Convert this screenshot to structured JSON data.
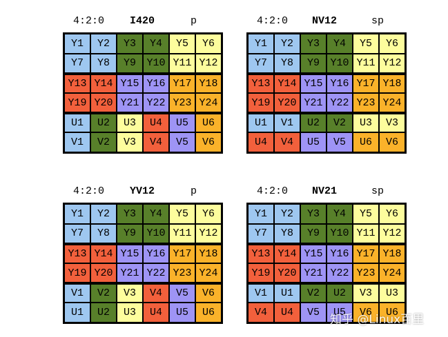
{
  "colors": {
    "blue": "#9ec7f0",
    "green": "#58802a",
    "yellow": "#fdfd9d",
    "red": "#f2603c",
    "purple": "#9e94f5",
    "orange": "#fab22a"
  },
  "panels": [
    {
      "ratio": "4:2:0",
      "name": "I420",
      "kind": "p",
      "rows": [
        [
          [
            "Y1",
            "blue"
          ],
          [
            "Y2",
            "blue"
          ],
          [
            "Y3",
            "green"
          ],
          [
            "Y4",
            "green"
          ],
          [
            "Y5",
            "yellow"
          ],
          [
            "Y6",
            "yellow"
          ]
        ],
        [
          [
            "Y7",
            "blue"
          ],
          [
            "Y8",
            "blue"
          ],
          [
            "Y9",
            "green"
          ],
          [
            "Y10",
            "green"
          ],
          [
            "Y11",
            "yellow"
          ],
          [
            "Y12",
            "yellow"
          ]
        ],
        [
          [
            "Y13",
            "red"
          ],
          [
            "Y14",
            "red"
          ],
          [
            "Y15",
            "purple"
          ],
          [
            "Y16",
            "purple"
          ],
          [
            "Y17",
            "orange"
          ],
          [
            "Y18",
            "orange"
          ]
        ],
        [
          [
            "Y19",
            "red"
          ],
          [
            "Y20",
            "red"
          ],
          [
            "Y21",
            "purple"
          ],
          [
            "Y22",
            "purple"
          ],
          [
            "Y23",
            "orange"
          ],
          [
            "Y24",
            "orange"
          ]
        ],
        [
          [
            "U1",
            "blue"
          ],
          [
            "U2",
            "green"
          ],
          [
            "U3",
            "yellow"
          ],
          [
            "U4",
            "red"
          ],
          [
            "U5",
            "purple"
          ],
          [
            "U6",
            "orange"
          ]
        ],
        [
          [
            "V1",
            "blue"
          ],
          [
            "V2",
            "green"
          ],
          [
            "V3",
            "yellow"
          ],
          [
            "V4",
            "red"
          ],
          [
            "V5",
            "purple"
          ],
          [
            "V6",
            "orange"
          ]
        ]
      ]
    },
    {
      "ratio": "4:2:0",
      "name": "NV12",
      "kind": "sp",
      "rows": [
        [
          [
            "Y1",
            "blue"
          ],
          [
            "Y2",
            "blue"
          ],
          [
            "Y3",
            "green"
          ],
          [
            "Y4",
            "green"
          ],
          [
            "Y5",
            "yellow"
          ],
          [
            "Y6",
            "yellow"
          ]
        ],
        [
          [
            "Y7",
            "blue"
          ],
          [
            "Y8",
            "blue"
          ],
          [
            "Y9",
            "green"
          ],
          [
            "Y10",
            "green"
          ],
          [
            "Y11",
            "yellow"
          ],
          [
            "Y12",
            "yellow"
          ]
        ],
        [
          [
            "Y13",
            "red"
          ],
          [
            "Y14",
            "red"
          ],
          [
            "Y15",
            "purple"
          ],
          [
            "Y16",
            "purple"
          ],
          [
            "Y17",
            "orange"
          ],
          [
            "Y18",
            "orange"
          ]
        ],
        [
          [
            "Y19",
            "red"
          ],
          [
            "Y20",
            "red"
          ],
          [
            "Y21",
            "purple"
          ],
          [
            "Y22",
            "purple"
          ],
          [
            "Y23",
            "orange"
          ],
          [
            "Y24",
            "orange"
          ]
        ],
        [
          [
            "U1",
            "blue"
          ],
          [
            "V1",
            "blue"
          ],
          [
            "U2",
            "green"
          ],
          [
            "V2",
            "green"
          ],
          [
            "U3",
            "yellow"
          ],
          [
            "V3",
            "yellow"
          ]
        ],
        [
          [
            "U4",
            "red"
          ],
          [
            "V4",
            "red"
          ],
          [
            "U5",
            "purple"
          ],
          [
            "V5",
            "purple"
          ],
          [
            "U6",
            "orange"
          ],
          [
            "V6",
            "orange"
          ]
        ]
      ]
    },
    {
      "ratio": "4:2:0",
      "name": "YV12",
      "kind": "p",
      "rows": [
        [
          [
            "Y1",
            "blue"
          ],
          [
            "Y2",
            "blue"
          ],
          [
            "Y3",
            "green"
          ],
          [
            "Y4",
            "green"
          ],
          [
            "Y5",
            "yellow"
          ],
          [
            "Y6",
            "yellow"
          ]
        ],
        [
          [
            "Y7",
            "blue"
          ],
          [
            "Y8",
            "blue"
          ],
          [
            "Y9",
            "green"
          ],
          [
            "Y10",
            "green"
          ],
          [
            "Y11",
            "yellow"
          ],
          [
            "Y12",
            "yellow"
          ]
        ],
        [
          [
            "Y13",
            "red"
          ],
          [
            "Y14",
            "red"
          ],
          [
            "Y15",
            "purple"
          ],
          [
            "Y16",
            "purple"
          ],
          [
            "Y17",
            "orange"
          ],
          [
            "Y18",
            "orange"
          ]
        ],
        [
          [
            "Y19",
            "red"
          ],
          [
            "Y20",
            "red"
          ],
          [
            "Y21",
            "purple"
          ],
          [
            "Y22",
            "purple"
          ],
          [
            "Y23",
            "orange"
          ],
          [
            "Y24",
            "orange"
          ]
        ],
        [
          [
            "V1",
            "blue"
          ],
          [
            "V2",
            "green"
          ],
          [
            "V3",
            "yellow"
          ],
          [
            "V4",
            "red"
          ],
          [
            "V5",
            "purple"
          ],
          [
            "V6",
            "orange"
          ]
        ],
        [
          [
            "U1",
            "blue"
          ],
          [
            "U2",
            "green"
          ],
          [
            "U3",
            "yellow"
          ],
          [
            "U4",
            "red"
          ],
          [
            "U5",
            "purple"
          ],
          [
            "U6",
            "orange"
          ]
        ]
      ]
    },
    {
      "ratio": "4:2:0",
      "name": "NV21",
      "kind": "sp",
      "rows": [
        [
          [
            "Y1",
            "blue"
          ],
          [
            "Y2",
            "blue"
          ],
          [
            "Y3",
            "green"
          ],
          [
            "Y4",
            "green"
          ],
          [
            "Y5",
            "yellow"
          ],
          [
            "Y6",
            "yellow"
          ]
        ],
        [
          [
            "Y7",
            "blue"
          ],
          [
            "Y8",
            "blue"
          ],
          [
            "Y9",
            "green"
          ],
          [
            "Y10",
            "green"
          ],
          [
            "Y11",
            "yellow"
          ],
          [
            "Y12",
            "yellow"
          ]
        ],
        [
          [
            "Y13",
            "red"
          ],
          [
            "Y14",
            "red"
          ],
          [
            "Y15",
            "purple"
          ],
          [
            "Y16",
            "purple"
          ],
          [
            "Y17",
            "orange"
          ],
          [
            "Y18",
            "orange"
          ]
        ],
        [
          [
            "Y19",
            "red"
          ],
          [
            "Y20",
            "red"
          ],
          [
            "Y21",
            "purple"
          ],
          [
            "Y22",
            "purple"
          ],
          [
            "Y23",
            "orange"
          ],
          [
            "Y24",
            "orange"
          ]
        ],
        [
          [
            "V1",
            "blue"
          ],
          [
            "U1",
            "blue"
          ],
          [
            "V2",
            "green"
          ],
          [
            "U2",
            "green"
          ],
          [
            "V3",
            "yellow"
          ],
          [
            "U3",
            "yellow"
          ]
        ],
        [
          [
            "V4",
            "red"
          ],
          [
            "U4",
            "red"
          ],
          [
            "V5",
            "purple"
          ],
          [
            "U5",
            "purple"
          ],
          [
            "V6",
            "orange"
          ],
          [
            "U6",
            "orange"
          ]
        ]
      ]
    }
  ],
  "watermark": "知乎 @Linux百里"
}
